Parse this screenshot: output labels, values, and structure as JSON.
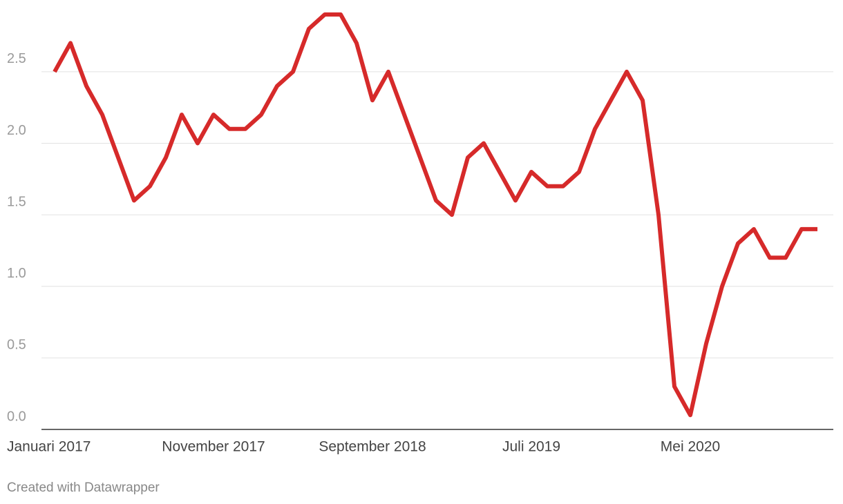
{
  "chart_data": {
    "type": "line",
    "categories": [
      "Januari 2017",
      null,
      null,
      null,
      null,
      null,
      null,
      null,
      null,
      null,
      "November 2017",
      null,
      null,
      null,
      null,
      null,
      null,
      null,
      null,
      null,
      "September 2018",
      null,
      null,
      null,
      null,
      null,
      null,
      null,
      null,
      null,
      "Juli 2019",
      null,
      null,
      null,
      null,
      null,
      null,
      null,
      null,
      null,
      "Mei 2020",
      null,
      null,
      null,
      null,
      null,
      null,
      null,
      null
    ],
    "series": [
      {
        "color": "#d62a2a",
        "values": [
          2.5,
          2.7,
          2.4,
          2.2,
          1.9,
          1.6,
          1.7,
          1.9,
          2.2,
          2.0,
          2.2,
          2.1,
          2.1,
          2.2,
          2.4,
          2.5,
          2.8,
          2.9,
          2.9,
          2.7,
          2.3,
          2.5,
          2.2,
          1.9,
          1.6,
          1.5,
          1.9,
          2.0,
          1.8,
          1.6,
          1.8,
          1.7,
          1.7,
          1.8,
          2.1,
          2.3,
          2.5,
          2.3,
          1.5,
          0.3,
          0.1,
          0.6,
          1.0,
          1.3,
          1.4,
          1.2,
          1.2,
          1.4,
          1.4
        ]
      }
    ],
    "ylim": [
      0,
      2.9
    ],
    "yticks": [
      {
        "value": 0,
        "label": "0.0"
      },
      0.5,
      {
        "value": 1,
        "label": "1.0"
      },
      1.5,
      {
        "value": 2,
        "label": "2.0"
      },
      2.5
    ],
    "grid": true,
    "footer": "Created with Datawrapper"
  }
}
